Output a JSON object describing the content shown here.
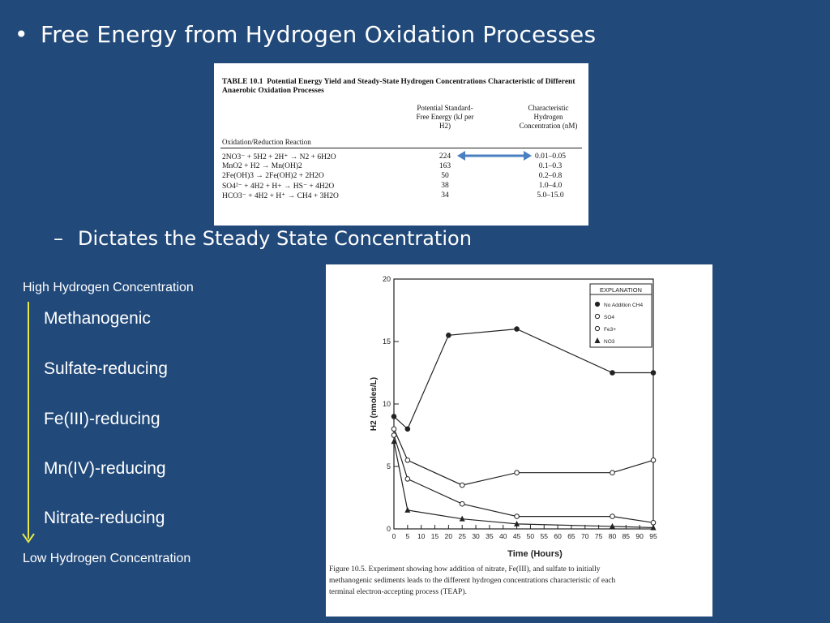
{
  "title": "Free Energy from Hydrogen Oxidation Processes",
  "subtitle": "Dictates the Steady State Concentration",
  "table": {
    "caption_number": "TABLE 10.1",
    "caption_text": "Potential Energy Yield and Steady-State Hydrogen Concentrations Characteristic of Different Anaerobic Oxidation Processes",
    "col_reaction": "Oxidation/Reduction Reaction",
    "col_energy": "Potential Standard-Free Energy (kJ per H2)",
    "col_h2": "Characteristic Hydrogen Concentration (nM)",
    "rows": [
      {
        "reaction": "2NO3⁻ + 5H2 + 2H⁺ → N2 + 6H2O",
        "energy": "224",
        "h2": "0.01–0.05"
      },
      {
        "reaction": "MnO2 + H2 → Mn(OH)2",
        "energy": "163",
        "h2": "0.1–0.3"
      },
      {
        "reaction": "2Fe(OH)3 → 2Fe(OH)2 + 2H2O",
        "energy": "50",
        "h2": "0.2–0.8"
      },
      {
        "reaction": "SO4²⁻ + 4H2 + H+ → HS⁻ + 4H2O",
        "energy": "38",
        "h2": "1.0–4.0"
      },
      {
        "reaction": "HCO3⁻ + 4H2 + H⁺ → CH4 + 3H2O",
        "energy": "34",
        "h2": "5.0–15.0"
      }
    ]
  },
  "side": {
    "top_label": "High Hydrogen Concentration",
    "bottom_label": "Low Hydrogen Concentration",
    "items": [
      "Methanogenic",
      "Sulfate-reducing",
      "Fe(III)-reducing",
      "Mn(IV)-reducing",
      "Nitrate-reducing"
    ]
  },
  "figure": {
    "ylabel": "H2 (nmoles/L)",
    "xlabel": "Time (Hours)",
    "legend_title": "EXPLANATION",
    "legend": [
      "No Addition CH4",
      "SO4",
      "Fe3+",
      "NO3"
    ],
    "caption_label": "Figure 10.5.",
    "caption_text": "Experiment showing how addition of nitrate, Fe(III), and sulfate to initially methanogenic sediments leads to the different hydrogen concentrations characteristic of each terminal electron-accepting process (TEAP)."
  },
  "chart_data": {
    "type": "line",
    "xlabel": "Time (Hours)",
    "ylabel": "H2 (nmoles/L)",
    "xlim": [
      0,
      95
    ],
    "ylim": [
      0,
      20
    ],
    "xticks": [
      0,
      5,
      10,
      15,
      20,
      25,
      30,
      35,
      40,
      45,
      50,
      55,
      60,
      65,
      70,
      75,
      80,
      85,
      90,
      95
    ],
    "yticks": [
      0,
      5,
      10,
      15,
      20
    ],
    "series": [
      {
        "name": "No Addition CH4",
        "x": [
          0,
          5,
          20,
          45,
          80,
          95
        ],
        "y": [
          9,
          8,
          15.5,
          16,
          12.5,
          12.5
        ]
      },
      {
        "name": "SO4",
        "x": [
          0,
          5,
          25,
          45,
          80,
          95
        ],
        "y": [
          8,
          5.5,
          3.5,
          4.5,
          4.5,
          5.5
        ]
      },
      {
        "name": "Fe3+",
        "x": [
          0,
          5,
          25,
          45,
          80,
          95
        ],
        "y": [
          7.5,
          4,
          2,
          1,
          1,
          0.5
        ]
      },
      {
        "name": "NO3",
        "x": [
          0,
          5,
          25,
          45,
          80,
          95
        ],
        "y": [
          7,
          1.5,
          0.8,
          0.4,
          0.2,
          0.1
        ]
      }
    ]
  }
}
